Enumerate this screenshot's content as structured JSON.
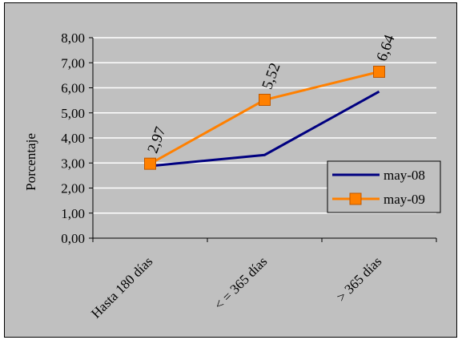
{
  "chart_data": {
    "type": "line",
    "categories": [
      "Hasta 180 días",
      "< = 365 días",
      "> 365 días"
    ],
    "ylabel": "Porcentaje",
    "ylim": [
      0,
      8
    ],
    "y_ticks": [
      "0,00",
      "1,00",
      "2,00",
      "3,00",
      "4,00",
      "5,00",
      "6,00",
      "7,00",
      "8,00"
    ],
    "grid": true,
    "legend_position": "right",
    "series": [
      {
        "name": "may-08",
        "values": [
          2.88,
          3.32,
          5.85
        ],
        "color": "#000080",
        "marker": "none"
      },
      {
        "name": "may-09",
        "values": [
          2.97,
          5.52,
          6.64
        ],
        "color": "#ff8000",
        "marker": "square",
        "data_labels": [
          "2,97",
          "5,52",
          "6,64"
        ]
      }
    ]
  }
}
